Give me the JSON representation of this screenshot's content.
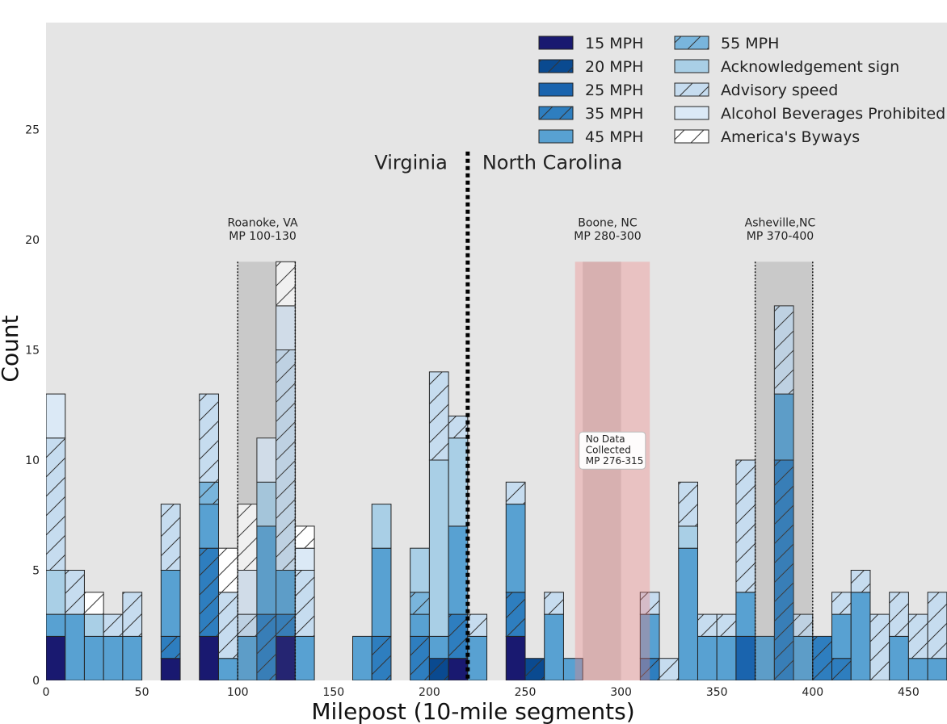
{
  "chart_data": {
    "type": "bar",
    "stacked": true,
    "xlabel": "Milepost (10-mile segments)",
    "ylabel": "Count",
    "xlim": [
      0,
      470
    ],
    "ylim": [
      0,
      30
    ],
    "x_ticks": [
      0,
      50,
      100,
      150,
      200,
      250,
      300,
      350,
      400,
      450
    ],
    "y_ticks": [
      0,
      5,
      10,
      15,
      20,
      25
    ],
    "grid": false,
    "bin_width": 10,
    "legend": {
      "location": "top-right",
      "columns": 2
    },
    "series": [
      {
        "name": "15 MPH",
        "color": "#191970",
        "hatch": false
      },
      {
        "name": "20 MPH",
        "color": "#0a4a90",
        "hatch": true
      },
      {
        "name": "25 MPH",
        "color": "#1a64ae",
        "hatch": false
      },
      {
        "name": "35 MPH",
        "color": "#2e7ebf",
        "hatch": true
      },
      {
        "name": "45 MPH",
        "color": "#58a1d2",
        "hatch": false
      },
      {
        "name": "55 MPH",
        "color": "#79b5dc",
        "hatch": true
      },
      {
        "name": "Acknowledgement sign",
        "color": "#a9cfe6",
        "hatch": false
      },
      {
        "name": "Advisory speed",
        "color": "#c6dcef",
        "hatch": true
      },
      {
        "name": "Alcohol Beverages Prohibited",
        "color": "#dbe9f6",
        "hatch": false
      },
      {
        "name": "America's Byways",
        "color": "#ffffff",
        "hatch": true
      }
    ],
    "bars": [
      {
        "x": 0,
        "segments": [
          {
            "s": 0,
            "v": 2
          },
          {
            "s": 4,
            "v": 1
          },
          {
            "s": 6,
            "v": 2
          },
          {
            "s": 7,
            "v": 6
          },
          {
            "s": 8,
            "v": 2
          }
        ]
      },
      {
        "x": 10,
        "segments": [
          {
            "s": 4,
            "v": 3
          },
          {
            "s": 7,
            "v": 2
          }
        ]
      },
      {
        "x": 20,
        "segments": [
          {
            "s": 4,
            "v": 2
          },
          {
            "s": 6,
            "v": 1
          },
          {
            "s": 9,
            "v": 1
          }
        ]
      },
      {
        "x": 30,
        "segments": [
          {
            "s": 4,
            "v": 2
          },
          {
            "s": 7,
            "v": 1
          }
        ]
      },
      {
        "x": 40,
        "segments": [
          {
            "s": 4,
            "v": 2
          },
          {
            "s": 7,
            "v": 2
          }
        ]
      },
      {
        "x": 60,
        "segments": [
          {
            "s": 0,
            "v": 1
          },
          {
            "s": 3,
            "v": 1
          },
          {
            "s": 4,
            "v": 3
          },
          {
            "s": 7,
            "v": 3
          }
        ]
      },
      {
        "x": 80,
        "segments": [
          {
            "s": 0,
            "v": 2
          },
          {
            "s": 3,
            "v": 4
          },
          {
            "s": 4,
            "v": 2
          },
          {
            "s": 5,
            "v": 1
          },
          {
            "s": 7,
            "v": 4
          }
        ]
      },
      {
        "x": 90,
        "segments": [
          {
            "s": 4,
            "v": 1
          },
          {
            "s": 7,
            "v": 3
          },
          {
            "s": 9,
            "v": 2
          }
        ]
      },
      {
        "x": 100,
        "segments": [
          {
            "s": 4,
            "v": 2
          },
          {
            "s": 7,
            "v": 1
          },
          {
            "s": 8,
            "v": 2
          },
          {
            "s": 9,
            "v": 3
          }
        ]
      },
      {
        "x": 110,
        "segments": [
          {
            "s": 3,
            "v": 3
          },
          {
            "s": 4,
            "v": 4
          },
          {
            "s": 6,
            "v": 2
          },
          {
            "s": 8,
            "v": 2
          }
        ]
      },
      {
        "x": 120,
        "segments": [
          {
            "s": 0,
            "v": 2
          },
          {
            "s": 3,
            "v": 1
          },
          {
            "s": 4,
            "v": 2
          },
          {
            "s": 7,
            "v": 10
          },
          {
            "s": 8,
            "v": 2
          },
          {
            "s": 9,
            "v": 2
          }
        ]
      },
      {
        "x": 130,
        "segments": [
          {
            "s": 4,
            "v": 2
          },
          {
            "s": 7,
            "v": 3
          },
          {
            "s": 8,
            "v": 1
          },
          {
            "s": 9,
            "v": 1
          }
        ]
      },
      {
        "x": 160,
        "segments": [
          {
            "s": 4,
            "v": 2
          }
        ]
      },
      {
        "x": 170,
        "segments": [
          {
            "s": 3,
            "v": 2
          },
          {
            "s": 4,
            "v": 4
          },
          {
            "s": 6,
            "v": 2
          }
        ]
      },
      {
        "x": 190,
        "segments": [
          {
            "s": 3,
            "v": 2
          },
          {
            "s": 4,
            "v": 1
          },
          {
            "s": 5,
            "v": 1
          },
          {
            "s": 6,
            "v": 2
          }
        ]
      },
      {
        "x": 200,
        "segments": [
          {
            "s": 1,
            "v": 1
          },
          {
            "s": 4,
            "v": 1
          },
          {
            "s": 6,
            "v": 8
          },
          {
            "s": 7,
            "v": 4
          }
        ]
      },
      {
        "x": 210,
        "segments": [
          {
            "s": 0,
            "v": 1
          },
          {
            "s": 3,
            "v": 2
          },
          {
            "s": 4,
            "v": 4
          },
          {
            "s": 6,
            "v": 4
          },
          {
            "s": 7,
            "v": 1
          }
        ]
      },
      {
        "x": 220,
        "segments": [
          {
            "s": 4,
            "v": 2
          },
          {
            "s": 7,
            "v": 1
          }
        ]
      },
      {
        "x": 240,
        "segments": [
          {
            "s": 0,
            "v": 2
          },
          {
            "s": 3,
            "v": 2
          },
          {
            "s": 4,
            "v": 4
          },
          {
            "s": 7,
            "v": 1
          }
        ]
      },
      {
        "x": 250,
        "segments": [
          {
            "s": 1,
            "v": 1
          }
        ]
      },
      {
        "x": 260,
        "segments": [
          {
            "s": 4,
            "v": 3
          },
          {
            "s": 7,
            "v": 1
          }
        ]
      },
      {
        "x": 270,
        "segments": [
          {
            "s": 4,
            "v": 1
          }
        ]
      },
      {
        "x": 310,
        "segments": [
          {
            "s": 3,
            "v": 1
          },
          {
            "s": 4,
            "v": 2
          },
          {
            "s": 7,
            "v": 1
          }
        ]
      },
      {
        "x": 320,
        "segments": [
          {
            "s": 7,
            "v": 1
          }
        ]
      },
      {
        "x": 330,
        "segments": [
          {
            "s": 4,
            "v": 6
          },
          {
            "s": 6,
            "v": 1
          },
          {
            "s": 7,
            "v": 2
          }
        ]
      },
      {
        "x": 340,
        "segments": [
          {
            "s": 4,
            "v": 2
          },
          {
            "s": 7,
            "v": 1
          }
        ]
      },
      {
        "x": 350,
        "segments": [
          {
            "s": 4,
            "v": 2
          },
          {
            "s": 7,
            "v": 1
          }
        ]
      },
      {
        "x": 360,
        "segments": [
          {
            "s": 2,
            "v": 2
          },
          {
            "s": 4,
            "v": 2
          },
          {
            "s": 7,
            "v": 6
          }
        ]
      },
      {
        "x": 370,
        "segments": [
          {
            "s": 4,
            "v": 2
          }
        ]
      },
      {
        "x": 380,
        "segments": [
          {
            "s": 3,
            "v": 10
          },
          {
            "s": 4,
            "v": 3
          },
          {
            "s": 7,
            "v": 4
          }
        ]
      },
      {
        "x": 390,
        "segments": [
          {
            "s": 4,
            "v": 2
          },
          {
            "s": 7,
            "v": 1
          }
        ]
      },
      {
        "x": 400,
        "segments": [
          {
            "s": 3,
            "v": 2
          }
        ]
      },
      {
        "x": 410,
        "segments": [
          {
            "s": 3,
            "v": 1
          },
          {
            "s": 4,
            "v": 2
          },
          {
            "s": 7,
            "v": 1
          }
        ]
      },
      {
        "x": 420,
        "segments": [
          {
            "s": 4,
            "v": 4
          },
          {
            "s": 7,
            "v": 1
          }
        ]
      },
      {
        "x": 430,
        "segments": [
          {
            "s": 7,
            "v": 3
          }
        ]
      },
      {
        "x": 440,
        "segments": [
          {
            "s": 4,
            "v": 2
          },
          {
            "s": 7,
            "v": 2
          }
        ]
      },
      {
        "x": 450,
        "segments": [
          {
            "s": 4,
            "v": 1
          },
          {
            "s": 7,
            "v": 2
          }
        ]
      },
      {
        "x": 460,
        "segments": [
          {
            "s": 4,
            "v": 1
          },
          {
            "s": 7,
            "v": 3
          }
        ]
      }
    ],
    "annotations": {
      "state_line": {
        "x": 220,
        "y_top": 24,
        "left_label": "Virginia",
        "right_label": "North Carolina",
        "label_y": 23.2
      },
      "cities": [
        {
          "line1": "Roanoke, VA",
          "line2": "MP 100-130",
          "x_start": 100,
          "x_end": 130,
          "label_x": 113,
          "top": 19
        },
        {
          "line1": "Boone, NC",
          "line2": "MP 280-300",
          "x_start": 280,
          "x_end": 300,
          "label_x": 293,
          "top": 19
        },
        {
          "line1": "Asheville,NC",
          "line2": "MP 370-400",
          "x_start": 370,
          "x_end": 400,
          "label_x": 383,
          "top": 19
        }
      ],
      "no_data": {
        "x_start": 276,
        "x_end": 315,
        "top": 19,
        "lines": [
          "No Data",
          "Collected",
          "MP 276-315"
        ],
        "label_x": 279,
        "label_y": 11.2
      }
    }
  }
}
